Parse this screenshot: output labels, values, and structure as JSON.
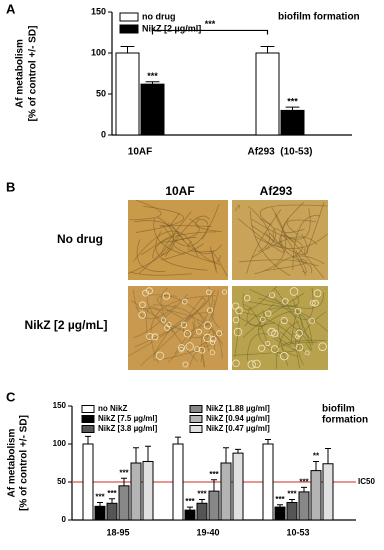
{
  "panel_labels": [
    "A",
    "B",
    "C"
  ],
  "image_panel": {
    "columns": [
      "10AF",
      "Af293"
    ],
    "rows": [
      "No drug",
      "NikZ [2 µg/mL]"
    ]
  },
  "chart_data": [
    {
      "type": "bar",
      "ylabel": [
        "Af metabolism",
        "[% of control +/- SD]"
      ],
      "annotation": [
        "biofilm formation"
      ],
      "categories": [
        "10AF",
        "Af293  (10-53)"
      ],
      "series": [
        {
          "name": "no drug",
          "color": "#ffffff",
          "values": [
            100,
            100
          ],
          "errors": [
            8,
            8
          ],
          "significance": [
            null,
            null
          ]
        },
        {
          "name": "NikZ [2 µg/ml]",
          "color": "#000000",
          "values": [
            62,
            30
          ],
          "errors": [
            3,
            4
          ],
          "significance": [
            "***",
            "***"
          ]
        }
      ],
      "bracket_label": "***",
      "ylim": [
        0,
        150
      ],
      "yticks": [
        0,
        50,
        100,
        150
      ]
    },
    {
      "type": "bar",
      "ylabel": [
        "Af metabolism",
        "[% of control +/- SD]"
      ],
      "annotation": [
        "biofilm",
        "formation"
      ],
      "categories": [
        "18-95",
        "19-40",
        "10-53"
      ],
      "series": [
        {
          "name": "no NikZ",
          "color": "#ffffff",
          "values": [
            100,
            100,
            100
          ],
          "errors": [
            10,
            9,
            6
          ],
          "significance": [
            null,
            null,
            null
          ]
        },
        {
          "name": "NikZ [7.5 µg/ml]",
          "color": "#000000",
          "values": [
            18,
            13,
            17
          ],
          "errors": [
            5,
            4,
            3
          ],
          "significance": [
            "***",
            "***",
            "***"
          ]
        },
        {
          "name": "NikZ [3.8 µg/ml]",
          "color": "#555555",
          "values": [
            22,
            22,
            23
          ],
          "errors": [
            6,
            5,
            4
          ],
          "significance": [
            "***",
            "***",
            "***"
          ]
        },
        {
          "name": "NikZ [1.88 µg/ml]",
          "color": "#888888",
          "values": [
            45,
            38,
            37
          ],
          "errors": [
            10,
            15,
            6
          ],
          "significance": [
            "***",
            "***",
            "***"
          ]
        },
        {
          "name": "NikZ [0.94 µg/ml]",
          "color": "#b4b4b4",
          "values": [
            75,
            75,
            65
          ],
          "errors": [
            20,
            20,
            12
          ],
          "significance": [
            null,
            null,
            "**"
          ]
        },
        {
          "name": "NikZ [0.47 µg/ml]",
          "color": "#e0e0e0",
          "values": [
            77,
            88,
            74
          ],
          "errors": [
            20,
            5,
            20
          ],
          "significance": [
            null,
            null,
            null
          ]
        }
      ],
      "reference_line": {
        "value": 50,
        "label": "IC50",
        "color": "#d9534f"
      },
      "ylim": [
        0,
        150
      ],
      "yticks": [
        0,
        50,
        100,
        150
      ]
    }
  ]
}
